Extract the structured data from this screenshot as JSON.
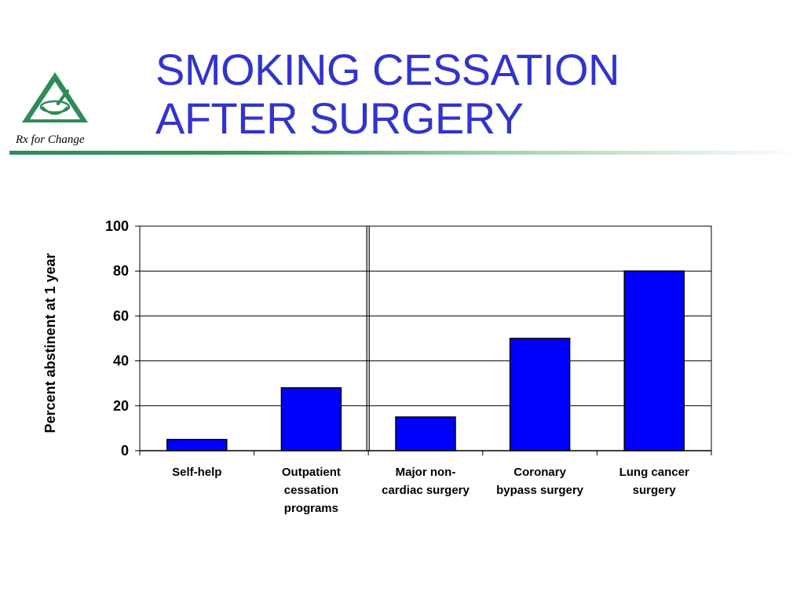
{
  "title": {
    "line1": "SMOKING CESSATION",
    "line2": "AFTER SURGERY"
  },
  "logo": {
    "text": "Rx for Change",
    "icon": "mortar-and-pestle-triangle-icon",
    "color": "#2e8b57"
  },
  "colors": {
    "title": "#3333cc",
    "bar": "#0000ff",
    "accent": "#2e8b57"
  },
  "chart_data": {
    "type": "bar",
    "categories": [
      [
        "Self-help"
      ],
      [
        "Outpatient",
        "cessation",
        "programs"
      ],
      [
        "Major non-",
        "cardiac surgery"
      ],
      [
        "Coronary",
        "bypass surgery"
      ],
      [
        "Lung cancer",
        "surgery"
      ]
    ],
    "values": [
      5,
      28,
      15,
      50,
      80
    ],
    "ylabel": "Percent abstinent at  1 year",
    "xlabel": "",
    "ylim": [
      0,
      100
    ],
    "yticks": [
      "0",
      "20",
      "40",
      "60",
      "80",
      "100"
    ],
    "grid": true,
    "separator_after_category": 2
  }
}
